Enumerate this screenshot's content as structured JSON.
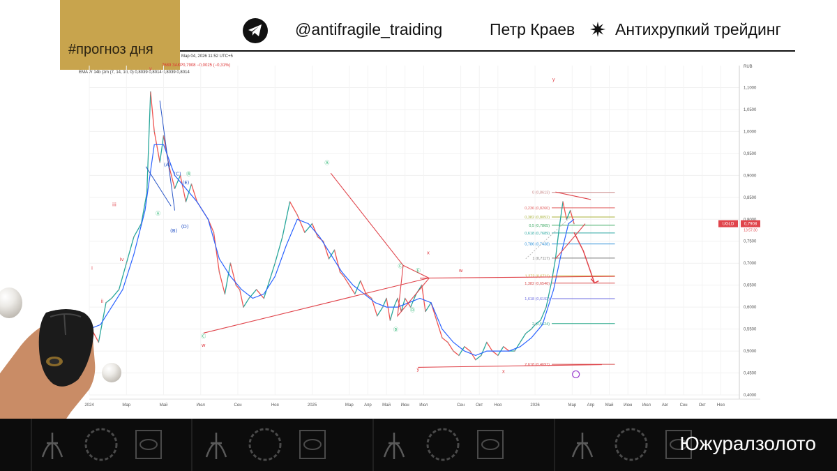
{
  "header": {
    "tag": "#прогноз дня",
    "telegram_icon": "telegram-icon",
    "handle": "@antifragile_traiding",
    "author": "Петр Краев",
    "separator_icon": "sunburst-icon",
    "brand": "Антихрупкий трейдинг"
  },
  "chart_info": {
    "line1": "Мар 04, 2026 11:52 UTC+5",
    "line2": "7689 ЗАКР0,7908 −0,0025 (−0,31%)",
    "line3": "EMA 7r 14b (zm (7, 14, 10, 0)  0,8039  0,8014  0,8039  0,8014"
  },
  "colors": {
    "up": "#26a69a",
    "down": "#ef5350",
    "ema": "#2962ff",
    "annotation": "#e0444b",
    "wave_green": "#2bb673",
    "wave_blue": "#2956c7",
    "tag_bg": "#c8a44d"
  },
  "chart_data": {
    "type": "line",
    "title": "",
    "currency_label": "RUB",
    "price_tag": "0,7908",
    "ticker_tag": "UGLD",
    "time_tag": "13:57:30",
    "ylim": [
      0.4,
      1.15
    ],
    "y_ticks": [
      "1,1000",
      "1,0500",
      "1,0000",
      "0,9500",
      "0,9000",
      "0,8500",
      "0,8000",
      "0,7500",
      "0,7000",
      "0,6500",
      "0,6000",
      "0,5500",
      "0,5000",
      "0,4500",
      "0,4000"
    ],
    "y_tick_values": [
      1.1,
      1.05,
      1.0,
      0.95,
      0.9,
      0.85,
      0.8,
      0.75,
      0.7,
      0.65,
      0.6,
      0.55,
      0.5,
      0.45,
      0.4
    ],
    "x_ticks": [
      "2024",
      "Мар",
      "Май",
      "Июл",
      "Сен",
      "Ноя",
      "2025",
      "Мар",
      "Апр",
      "Май",
      "Июн",
      "Июл",
      "Сен",
      "Окт",
      "Ноя",
      "2026",
      "Мар",
      "Апр",
      "Май",
      "Июн",
      "Июл",
      "Авг",
      "Сен",
      "Окт",
      "Ноя"
    ],
    "x_tick_index": [
      0,
      2,
      4,
      6,
      8,
      10,
      12,
      14,
      15,
      16,
      17,
      18,
      20,
      21,
      22,
      24,
      26,
      27,
      28,
      29,
      30,
      31,
      32,
      33,
      34
    ],
    "x_last_index": 35,
    "price_series": {
      "name": "UGLD",
      "x": [
        0,
        0.5,
        0.9,
        1.2,
        1.6,
        2.0,
        2.4,
        2.8,
        3.1,
        3.3,
        3.5,
        3.8,
        4.0,
        4.3,
        4.6,
        4.9,
        5.2,
        5.5,
        5.8,
        6.1,
        6.4,
        6.7,
        7.0,
        7.3,
        7.6,
        7.9,
        8.1,
        8.3,
        8.6,
        9.0,
        9.4,
        9.7,
        10.0,
        10.4,
        10.8,
        11.2,
        11.6,
        12.0,
        12.3,
        12.6,
        12.9,
        13.2,
        13.5,
        13.7,
        14.0,
        14.3,
        14.6,
        14.9,
        15.2,
        15.5,
        15.8,
        16.0,
        16.2,
        16.4,
        16.6,
        16.8,
        17.0,
        17.3,
        17.6,
        17.9,
        18.1,
        18.4,
        18.7,
        19.0,
        19.3,
        19.6,
        19.9,
        20.2,
        20.5,
        20.8,
        21.1,
        21.4,
        21.7,
        22.0,
        22.3,
        22.6,
        22.9,
        23.2,
        23.5,
        23.8,
        24.0,
        24.3,
        24.6,
        24.9,
        25.1,
        25.3,
        25.5,
        25.7,
        25.9,
        26.1
      ],
      "y": [
        0.56,
        0.52,
        0.61,
        0.62,
        0.64,
        0.7,
        0.76,
        0.79,
        0.86,
        1.09,
        1.0,
        0.93,
        0.99,
        0.92,
        0.87,
        0.9,
        0.84,
        0.88,
        0.84,
        0.82,
        0.8,
        0.77,
        0.68,
        0.63,
        0.7,
        0.65,
        0.64,
        0.6,
        0.62,
        0.64,
        0.62,
        0.66,
        0.7,
        0.76,
        0.84,
        0.81,
        0.77,
        0.79,
        0.76,
        0.75,
        0.71,
        0.73,
        0.68,
        0.67,
        0.65,
        0.63,
        0.66,
        0.63,
        0.62,
        0.58,
        0.6,
        0.62,
        0.57,
        0.6,
        0.62,
        0.59,
        0.62,
        0.6,
        0.63,
        0.65,
        0.59,
        0.61,
        0.57,
        0.53,
        0.52,
        0.5,
        0.49,
        0.51,
        0.5,
        0.48,
        0.49,
        0.52,
        0.5,
        0.49,
        0.51,
        0.5,
        0.5,
        0.52,
        0.54,
        0.55,
        0.56,
        0.57,
        0.6,
        0.66,
        0.71,
        0.78,
        0.84,
        0.8,
        0.82,
        0.79
      ]
    },
    "ema_series": {
      "name": "EMA",
      "x": [
        0,
        0.6,
        1.2,
        1.8,
        2.4,
        3.0,
        3.5,
        4.0,
        4.6,
        5.2,
        5.8,
        6.4,
        7.0,
        7.6,
        8.2,
        8.8,
        9.4,
        10.0,
        10.6,
        11.2,
        11.8,
        12.4,
        13.0,
        13.6,
        14.2,
        14.8,
        15.4,
        16.0,
        16.6,
        17.2,
        17.8,
        18.4,
        19.0,
        19.6,
        20.2,
        20.8,
        21.4,
        22.0,
        22.6,
        23.2,
        23.8,
        24.4,
        25.0,
        25.4,
        25.8,
        26.1
      ],
      "y": [
        0.55,
        0.56,
        0.6,
        0.64,
        0.72,
        0.82,
        0.97,
        0.97,
        0.9,
        0.87,
        0.84,
        0.8,
        0.71,
        0.67,
        0.64,
        0.62,
        0.63,
        0.67,
        0.74,
        0.8,
        0.79,
        0.76,
        0.72,
        0.68,
        0.65,
        0.63,
        0.61,
        0.6,
        0.6,
        0.61,
        0.62,
        0.61,
        0.55,
        0.52,
        0.5,
        0.49,
        0.5,
        0.5,
        0.5,
        0.51,
        0.53,
        0.56,
        0.64,
        0.72,
        0.79,
        0.8
      ]
    },
    "fib_levels": [
      {
        "label": "0 (0,8613)",
        "value": 0.8613,
        "color": "#c98a8a"
      },
      {
        "label": "0,236 (0,8260)",
        "value": 0.826,
        "color": "#e05a5a"
      },
      {
        "label": "0,382 (0,8052)",
        "value": 0.8052,
        "color": "#a8b23a"
      },
      {
        "label": "0,5 (0,7865)",
        "value": 0.7865,
        "color": "#3aa860"
      },
      {
        "label": "0,618 (0,7689)",
        "value": 0.7689,
        "color": "#2aa7a0"
      },
      {
        "label": "0,786 (0,7438)",
        "value": 0.7438,
        "color": "#2b8fd8"
      },
      {
        "label": "1 (0,7117)",
        "value": 0.7117,
        "color": "#777777"
      },
      {
        "label": "1,272 (0,6711)",
        "value": 0.6711,
        "color": "#c7b23a"
      },
      {
        "label": "1,382 (0,6546)",
        "value": 0.6546,
        "color": "#d84c4c"
      },
      {
        "label": "1,618 (0,6193)",
        "value": 0.6193,
        "color": "#6b6be0"
      },
      {
        "label": "2 (0,5624)",
        "value": 0.5624,
        "color": "#2aa88a"
      },
      {
        "label": "2,618 (0,4697)",
        "value": 0.4697,
        "color": "#d84c4c"
      }
    ],
    "wave_labels": [
      {
        "text": "i",
        "x": 0.15,
        "y": 0.685,
        "color": "#e0444b"
      },
      {
        "text": "ii",
        "x": 0.7,
        "y": 0.61,
        "color": "#e0444b"
      },
      {
        "text": "iii",
        "x": 1.35,
        "y": 0.83,
        "color": "#e0444b"
      },
      {
        "text": "iv",
        "x": 1.75,
        "y": 0.705,
        "color": "#e0444b"
      },
      {
        "text": "v",
        "x": 3.3,
        "y": 1.14,
        "color": "#e0444b"
      },
      {
        "text": "(A)",
        "x": 4.2,
        "y": 0.92,
        "color": "#2956c7"
      },
      {
        "text": "(B)",
        "x": 4.55,
        "y": 0.77,
        "color": "#2956c7"
      },
      {
        "text": "(C)",
        "x": 4.75,
        "y": 0.9,
        "color": "#2956c7"
      },
      {
        "text": "(D)",
        "x": 5.15,
        "y": 0.78,
        "color": "#2956c7"
      },
      {
        "text": "(E)",
        "x": 5.2,
        "y": 0.88,
        "color": "#2956c7"
      },
      {
        "text": "Ⓐ",
        "x": 3.7,
        "y": 0.81,
        "color": "#2bb673"
      },
      {
        "text": "Ⓑ",
        "x": 5.35,
        "y": 0.9,
        "color": "#2bb673"
      },
      {
        "text": "Ⓒ",
        "x": 6.15,
        "y": 0.53,
        "color": "#2bb673"
      },
      {
        "text": "w",
        "x": 6.15,
        "y": 0.51,
        "color": "#e0444b"
      },
      {
        "text": "Ⓐ",
        "x": 12.8,
        "y": 0.925,
        "color": "#2bb673"
      },
      {
        "text": "Ⓑ",
        "x": 16.5,
        "y": 0.545,
        "color": "#2bb673"
      },
      {
        "text": "Ⓒ",
        "x": 16.75,
        "y": 0.69,
        "color": "#2bb673"
      },
      {
        "text": "Ⓓ",
        "x": 17.4,
        "y": 0.59,
        "color": "#2bb673"
      },
      {
        "text": "Ⓔ",
        "x": 17.7,
        "y": 0.68,
        "color": "#2bb673"
      },
      {
        "text": "x",
        "x": 18.25,
        "y": 0.72,
        "color": "#e0444b"
      },
      {
        "text": "y",
        "x": 17.7,
        "y": 0.455,
        "color": "#e0444b"
      },
      {
        "text": "w",
        "x": 20.0,
        "y": 0.68,
        "color": "#e0444b"
      },
      {
        "text": "x",
        "x": 22.3,
        "y": 0.45,
        "color": "#e0444b"
      },
      {
        "text": "y",
        "x": 25.0,
        "y": 1.115,
        "color": "#e0444b"
      }
    ]
  },
  "footer": {
    "company": "Южуралзолото",
    "logo_icon": "monogram-icon",
    "wreath_icon": "laurel-wreath-icon",
    "eye_icon": "eye-emblem-icon"
  },
  "decor": {
    "hand_icon": "hand-with-mouse-icon",
    "pearl_icon": "pearl-icon"
  }
}
